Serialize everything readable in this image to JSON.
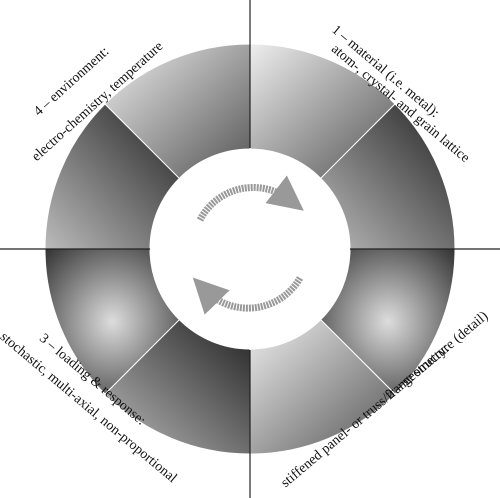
{
  "quadrants": [
    {
      "title": "1 – material (i.e. metal):",
      "subtitle": "atom-, crystal- and grain lattice"
    },
    {
      "title": "2 – geometry:",
      "subtitle": "stiffened panel- or truss/frame structure (detail)"
    },
    {
      "title": "3 – loading & response:",
      "subtitle": "stochastic, multi-axial, non-proportional"
    },
    {
      "title": "4 – environment:",
      "subtitle": "electro-chemistry, temperature"
    }
  ]
}
